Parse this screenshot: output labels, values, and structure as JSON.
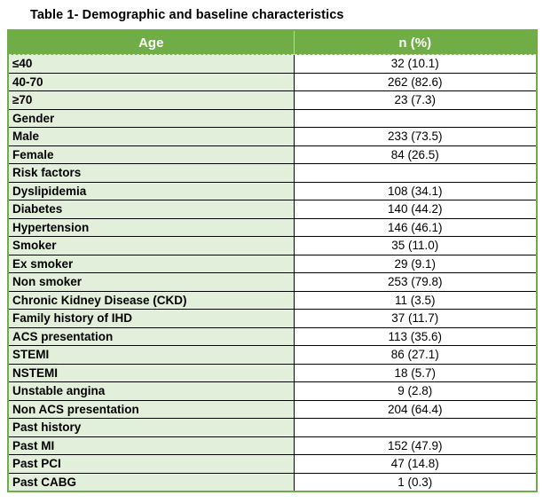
{
  "title": "Table 1- Demographic and baseline characteristics",
  "table": {
    "headers": [
      "Age",
      "n (%)"
    ],
    "rows": [
      {
        "label": "≤40",
        "value": "32 (10.1)"
      },
      {
        "label": "40-70",
        "value": "262 (82.6)"
      },
      {
        "label": "≥70",
        "value": "23 (7.3)"
      },
      {
        "label": "Gender",
        "value": ""
      },
      {
        "label": "Male",
        "value": "233 (73.5)"
      },
      {
        "label": "Female",
        "value": "84 (26.5)"
      },
      {
        "label": "Risk factors",
        "value": ""
      },
      {
        "label": "Dyslipidemia",
        "value": "108 (34.1)"
      },
      {
        "label": "Diabetes",
        "value": "140 (44.2)"
      },
      {
        "label": "Hypertension",
        "value": "146 (46.1)"
      },
      {
        "label": "Smoker",
        "value": "35 (11.0)"
      },
      {
        "label": "Ex smoker",
        "value": "29 (9.1)"
      },
      {
        "label": "Non smoker",
        "value": "253 (79.8)"
      },
      {
        "label": "Chronic Kidney Disease (CKD)",
        "value": "11 (3.5)"
      },
      {
        "label": "Family history of IHD",
        "value": "37 (11.7)"
      },
      {
        "label": "ACS presentation",
        "value": "113 (35.6)"
      },
      {
        "label": "STEMI",
        "value": "86 (27.1)"
      },
      {
        "label": "NSTEMI",
        "value": "18 (5.7)"
      },
      {
        "label": "Unstable angina",
        "value": "9 (2.8)"
      },
      {
        "label": "Non ACS presentation",
        "value": "204 (64.4)"
      },
      {
        "label": "Past history",
        "value": ""
      },
      {
        "label": "Past MI",
        "value": "152 (47.9)"
      },
      {
        "label": "Past PCI",
        "value": "47 (14.8)"
      },
      {
        "label": "Past CABG",
        "value": "1 (0.3)"
      }
    ]
  },
  "colors": {
    "header_bg": "#70AD47",
    "label_cell_bg": "#E2EFDA",
    "outer_border": "#70AD47",
    "row_divider": "#000000",
    "header_text": "#FFFFFF",
    "body_text": "#000000"
  }
}
